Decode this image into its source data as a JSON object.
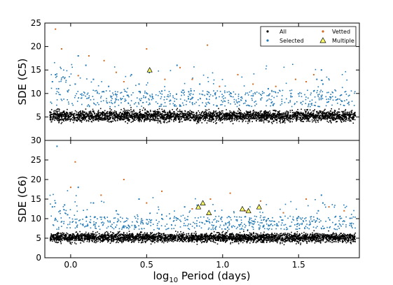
{
  "colors": {
    "all": "#000000",
    "selected": "#1f77b4",
    "vetted": "#d2691e",
    "multiple_fill": "#ffff66",
    "multiple_edge": "#000000"
  },
  "xlabel_prefix": "log",
  "xlabel_sub": "10",
  "xlabel_suffix": " Period (days)",
  "x_ticks": [
    "0.0",
    "0.5",
    "1.0",
    "1.5"
  ],
  "legend": {
    "all": "All",
    "selected": "Selected",
    "vetted": "Vetted",
    "multiple": "Multiple",
    "placement": "top-right (upper panel)"
  },
  "chart_data": [
    {
      "type": "scatter",
      "ylabel": "SDE (C5)",
      "xlim": [
        -0.17,
        1.9
      ],
      "ylim": [
        0,
        25
      ],
      "y_ticks": [
        "5",
        "10",
        "15",
        "20",
        "25"
      ],
      "series": [
        {
          "name": "Selected",
          "points": [
            [
              -0.12,
              12.5
            ],
            [
              -0.1,
              14.0
            ],
            [
              -0.08,
              11.0
            ],
            [
              -0.05,
              13.5
            ],
            [
              -0.02,
              10.5
            ],
            [
              0.03,
              12.0
            ],
            [
              0.05,
              18.0
            ],
            [
              0.1,
              16.0
            ],
            [
              0.15,
              13.0
            ],
            [
              0.25,
              11.5
            ],
            [
              0.4,
              14.0
            ],
            [
              0.45,
              12.0
            ],
            [
              0.6,
              10.5
            ],
            [
              0.7,
              16.0
            ],
            [
              0.85,
              12.0
            ],
            [
              0.95,
              10.0
            ],
            [
              1.2,
              9.5
            ],
            [
              1.3,
              11.0
            ],
            [
              1.45,
              10.0
            ],
            [
              1.6,
              10.5
            ],
            [
              1.62,
              13.0
            ],
            [
              1.65,
              15.0
            ],
            [
              1.66,
              12.0
            ]
          ]
        },
        {
          "name": "Vetted",
          "points": [
            [
              -0.1,
              23.7
            ],
            [
              -0.06,
              19.5
            ],
            [
              0.05,
              13.8
            ],
            [
              0.12,
              18.0
            ],
            [
              0.22,
              17.0
            ],
            [
              0.3,
              14.5
            ],
            [
              0.35,
              12.5
            ],
            [
              0.5,
              19.5
            ],
            [
              0.62,
              13.0
            ],
            [
              0.72,
              15.5
            ],
            [
              0.8,
              13.0
            ],
            [
              0.9,
              20.3
            ],
            [
              0.98,
              11.5
            ],
            [
              1.1,
              14.0
            ],
            [
              1.2,
              12.0
            ],
            [
              1.35,
              11.5
            ],
            [
              1.48,
              13.0
            ],
            [
              1.55,
              12.5
            ],
            [
              1.6,
              14.0
            ]
          ]
        },
        {
          "name": "Multiple",
          "points": [
            [
              0.52,
              15.0
            ]
          ]
        }
      ]
    },
    {
      "type": "scatter",
      "ylabel": "SDE (C6)",
      "xlim": [
        -0.17,
        1.9
      ],
      "ylim": [
        0,
        30
      ],
      "y_ticks": [
        "0",
        "5",
        "10",
        "15",
        "20",
        "25",
        "30"
      ],
      "series": [
        {
          "name": "Selected",
          "points": [
            [
              -0.12,
              13.0
            ],
            [
              -0.1,
              14.0
            ],
            [
              -0.07,
              12.0
            ],
            [
              -0.04,
              13.5
            ],
            [
              -0.02,
              11.0
            ],
            [
              -0.09,
              28.5
            ],
            [
              0.05,
              18.0
            ],
            [
              0.15,
              14.0
            ],
            [
              0.3,
              12.0
            ],
            [
              0.45,
              15.0
            ],
            [
              0.6,
              11.0
            ],
            [
              0.75,
              13.0
            ],
            [
              0.95,
              12.0
            ],
            [
              1.15,
              10.5
            ],
            [
              1.3,
              10.0
            ],
            [
              1.5,
              10.5
            ],
            [
              1.63,
              12.0
            ],
            [
              1.65,
              16.0
            ],
            [
              1.66,
              14.0
            ]
          ]
        },
        {
          "name": "Vetted",
          "points": [
            [
              0.03,
              24.5
            ],
            [
              0.0,
              18.0
            ],
            [
              0.2,
              16.0
            ],
            [
              0.35,
              20.0
            ],
            [
              0.5,
              14.0
            ],
            [
              0.6,
              17.0
            ],
            [
              0.8,
              12.5
            ],
            [
              0.92,
              15.0
            ],
            [
              1.05,
              16.5
            ],
            [
              1.15,
              12.0
            ],
            [
              1.25,
              14.5
            ],
            [
              1.4,
              11.5
            ],
            [
              1.55,
              15.0
            ],
            [
              1.7,
              13.0
            ],
            [
              1.8,
              12.0
            ]
          ]
        },
        {
          "name": "Multiple",
          "points": [
            [
              0.84,
              13.0
            ],
            [
              0.87,
              14.0
            ],
            [
              0.91,
              11.5
            ],
            [
              1.13,
              12.5
            ],
            [
              1.17,
              12.0
            ],
            [
              1.24,
              13.0
            ]
          ]
        }
      ]
    }
  ]
}
